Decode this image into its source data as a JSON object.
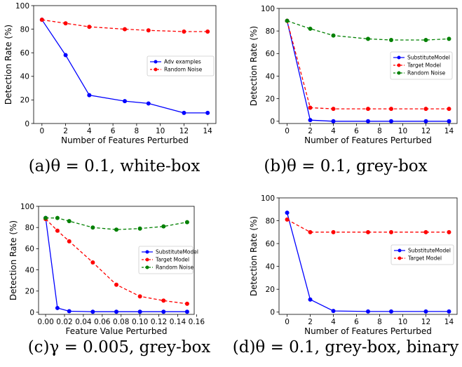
{
  "chart_data": [
    {
      "type": "line",
      "xlabel": "Number of Features Perturbed",
      "ylabel": "Detection Rate (%)",
      "xlim": [
        -0.7,
        14.7
      ],
      "ylim": [
        0,
        100
      ],
      "xticks": [
        0,
        2,
        4,
        6,
        8,
        10,
        12,
        14
      ],
      "yticks": [
        0,
        20,
        40,
        60,
        80,
        100
      ],
      "legend_position": "right",
      "caption": "(a)θ = 0.1, white-box",
      "series": [
        {
          "name": "Adv examples",
          "color": "#0000ff",
          "dash": "solid",
          "x": [
            0,
            2,
            4,
            7,
            9,
            12,
            14
          ],
          "values": [
            88,
            58,
            24,
            19,
            17,
            9,
            9
          ]
        },
        {
          "name": "Random Noise",
          "color": "#ff0000",
          "dash": "dashed",
          "x": [
            0,
            2,
            4,
            7,
            9,
            12,
            14
          ],
          "values": [
            88,
            85,
            82,
            80,
            79,
            78,
            78
          ]
        }
      ]
    },
    {
      "type": "line",
      "xlabel": "Number of Features Perturbed",
      "ylabel": "Detection Rate (%)",
      "xlim": [
        -0.7,
        14.7
      ],
      "ylim": [
        -2,
        100
      ],
      "xticks": [
        0,
        2,
        4,
        6,
        8,
        10,
        12,
        14
      ],
      "yticks": [
        0,
        20,
        40,
        60,
        80,
        100
      ],
      "legend_position": "right",
      "caption": "(b)θ = 0.1, grey-box",
      "series": [
        {
          "name": "SubstituteModel",
          "color": "#0000ff",
          "dash": "solid",
          "x": [
            0,
            2,
            4,
            7,
            9,
            12,
            14
          ],
          "values": [
            89,
            1,
            0,
            0,
            0,
            0,
            0
          ]
        },
        {
          "name": "Target Model",
          "color": "#ff0000",
          "dash": "dashed",
          "x": [
            0,
            2,
            4,
            7,
            9,
            12,
            14
          ],
          "values": [
            89,
            12,
            11,
            11,
            11,
            11,
            11
          ]
        },
        {
          "name": "Random Noise",
          "color": "#008000",
          "dash": "dashed",
          "x": [
            0,
            2,
            4,
            7,
            9,
            12,
            14
          ],
          "values": [
            89,
            82,
            76,
            73,
            72,
            72,
            73
          ]
        }
      ]
    },
    {
      "type": "line",
      "xlabel": "Feature Value Perturbed",
      "ylabel": "Detection Rate (%)",
      "xlim": [
        -0.0075,
        0.1575
      ],
      "ylim": [
        -2,
        100
      ],
      "xticks": [
        0.0,
        0.02,
        0.04,
        0.06,
        0.08,
        0.1,
        0.12,
        0.14,
        0.16
      ],
      "xtick_labels": [
        "0.00",
        "0.02",
        "0.04",
        "0.06",
        "0.08",
        "0.10",
        "0.12",
        "0.14",
        "0.16"
      ],
      "yticks": [
        0,
        20,
        40,
        60,
        80,
        100
      ],
      "legend_position": "right",
      "caption": "(c)γ = 0.005, grey-box",
      "series": [
        {
          "name": "SubstituteModel",
          "color": "#0000ff",
          "dash": "solid",
          "x": [
            0,
            0.0125,
            0.025,
            0.05,
            0.075,
            0.1,
            0.125,
            0.15
          ],
          "values": [
            89,
            4,
            1,
            0.5,
            0.5,
            0.5,
            0.5,
            0.5
          ]
        },
        {
          "name": "Target Model",
          "color": "#ff0000",
          "dash": "dashed",
          "x": [
            0,
            0.0125,
            0.025,
            0.05,
            0.075,
            0.1,
            0.125,
            0.15
          ],
          "values": [
            88,
            77,
            67,
            47,
            26,
            15,
            11,
            8
          ]
        },
        {
          "name": "Random Noise",
          "color": "#008000",
          "dash": "dashed",
          "x": [
            0,
            0.0125,
            0.025,
            0.05,
            0.075,
            0.1,
            0.125,
            0.15
          ],
          "values": [
            89,
            89,
            86,
            80,
            78,
            79,
            81,
            85
          ]
        }
      ]
    },
    {
      "type": "line",
      "xlabel": "Number of Features Perturbed",
      "ylabel": "Detection Rate (%)",
      "xlim": [
        -0.7,
        14.7
      ],
      "ylim": [
        -2,
        100
      ],
      "xticks": [
        0,
        2,
        4,
        6,
        8,
        10,
        12,
        14
      ],
      "yticks": [
        0,
        20,
        40,
        60,
        80,
        100
      ],
      "legend_position": "right",
      "caption": "(d)θ = 0.1, grey-box, binary",
      "series": [
        {
          "name": "SubstituteModel",
          "color": "#0000ff",
          "dash": "solid",
          "x": [
            0,
            2,
            4,
            7,
            9,
            12,
            14
          ],
          "values": [
            87,
            11,
            1,
            0.5,
            0.5,
            0.5,
            0.5
          ]
        },
        {
          "name": "Target Model",
          "color": "#ff0000",
          "dash": "dashed",
          "x": [
            0,
            2,
            4,
            7,
            9,
            12,
            14
          ],
          "values": [
            81,
            70,
            70,
            70,
            70,
            70,
            70
          ]
        }
      ]
    }
  ]
}
